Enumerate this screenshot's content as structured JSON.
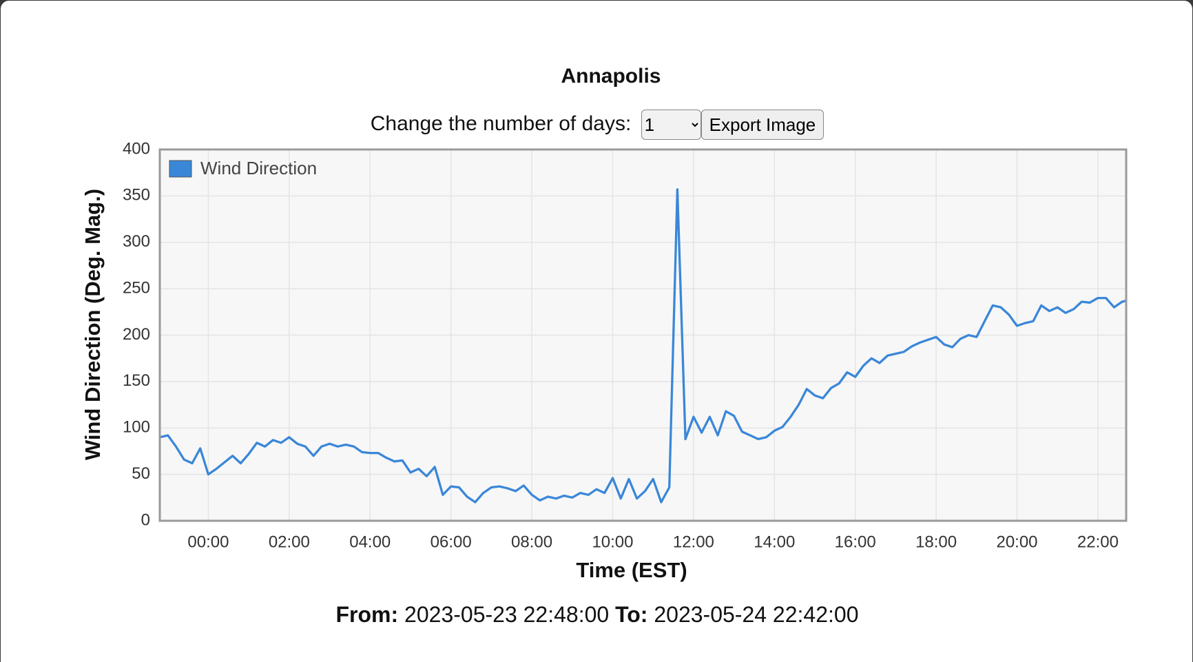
{
  "chart_data": {
    "type": "line",
    "title": "Annapolis",
    "x_label": "Time (EST)",
    "y_label": "Wind Direction (Deg. Mag.)",
    "x": [
      "22:48",
      "23:00",
      "23:12",
      "23:24",
      "23:36",
      "23:48",
      "00:00",
      "00:12",
      "00:24",
      "00:36",
      "00:48",
      "01:00",
      "01:12",
      "01:24",
      "01:36",
      "01:48",
      "02:00",
      "02:12",
      "02:24",
      "02:36",
      "02:48",
      "03:00",
      "03:12",
      "03:24",
      "03:36",
      "03:48",
      "04:00",
      "04:12",
      "04:24",
      "04:36",
      "04:48",
      "05:00",
      "05:12",
      "05:24",
      "05:36",
      "05:48",
      "06:00",
      "06:12",
      "06:24",
      "06:36",
      "06:48",
      "07:00",
      "07:12",
      "07:24",
      "07:36",
      "07:48",
      "08:00",
      "08:12",
      "08:24",
      "08:36",
      "08:48",
      "09:00",
      "09:12",
      "09:24",
      "09:36",
      "09:48",
      "10:00",
      "10:12",
      "10:24",
      "10:36",
      "10:48",
      "11:00",
      "11:12",
      "11:24",
      "11:36",
      "11:48",
      "12:00",
      "12:12",
      "12:24",
      "12:36",
      "12:48",
      "13:00",
      "13:12",
      "13:24",
      "13:36",
      "13:48",
      "14:00",
      "14:12",
      "14:24",
      "14:36",
      "14:48",
      "15:00",
      "15:12",
      "15:24",
      "15:36",
      "15:48",
      "16:00",
      "16:12",
      "16:24",
      "16:36",
      "16:48",
      "17:00",
      "17:12",
      "17:24",
      "17:36",
      "17:48",
      "18:00",
      "18:12",
      "18:24",
      "18:36",
      "18:48",
      "19:00",
      "19:12",
      "19:24",
      "19:36",
      "19:48",
      "20:00",
      "20:12",
      "20:24",
      "20:36",
      "20:48",
      "21:00",
      "21:12",
      "21:24",
      "21:36",
      "21:48",
      "22:00",
      "22:12",
      "22:24",
      "22:36",
      "22:42"
    ],
    "xlim": [
      "22:48",
      "22:42"
    ],
    "xticks": [
      "00:00",
      "02:00",
      "04:00",
      "06:00",
      "08:00",
      "10:00",
      "12:00",
      "14:00",
      "16:00",
      "18:00",
      "20:00",
      "22:00"
    ],
    "ylim": [
      0,
      400
    ],
    "yticks": [
      0,
      50,
      100,
      150,
      200,
      250,
      300,
      350,
      400
    ],
    "grid": true,
    "legend": "upper left",
    "series": [
      {
        "name": "Wind Direction",
        "color": "#3a87d8",
        "values": [
          90,
          92,
          80,
          66,
          62,
          78,
          50,
          56,
          63,
          70,
          62,
          72,
          84,
          80,
          87,
          84,
          90,
          83,
          80,
          70,
          80,
          83,
          80,
          82,
          80,
          74,
          73,
          73,
          68,
          64,
          65,
          52,
          56,
          48,
          58,
          28,
          37,
          36,
          26,
          20,
          30,
          36,
          37,
          35,
          32,
          38,
          28,
          22,
          26,
          24,
          27,
          25,
          30,
          28,
          34,
          30,
          46,
          24,
          45,
          24,
          32,
          45,
          20,
          36,
          357,
          88,
          112,
          95,
          112,
          92,
          118,
          113,
          96,
          92,
          88,
          90,
          97,
          101,
          112,
          125,
          142,
          135,
          132,
          143,
          148,
          160,
          155,
          167,
          175,
          170,
          178,
          180,
          182,
          188,
          192,
          195,
          198,
          190,
          187,
          196,
          200,
          198,
          215,
          232,
          230,
          222,
          210,
          213,
          215,
          232,
          226,
          230,
          224,
          228,
          236,
          235,
          240,
          240,
          230,
          236,
          237
        ]
      }
    ]
  },
  "controls": {
    "days_label": "Change the number of days:",
    "days_value": "1",
    "export_button": "Export Image"
  },
  "footer": {
    "from_label": "From:",
    "from": "2023-05-23 22:48:00",
    "to_label": "To:",
    "to": "2023-05-24 22:42:00"
  }
}
